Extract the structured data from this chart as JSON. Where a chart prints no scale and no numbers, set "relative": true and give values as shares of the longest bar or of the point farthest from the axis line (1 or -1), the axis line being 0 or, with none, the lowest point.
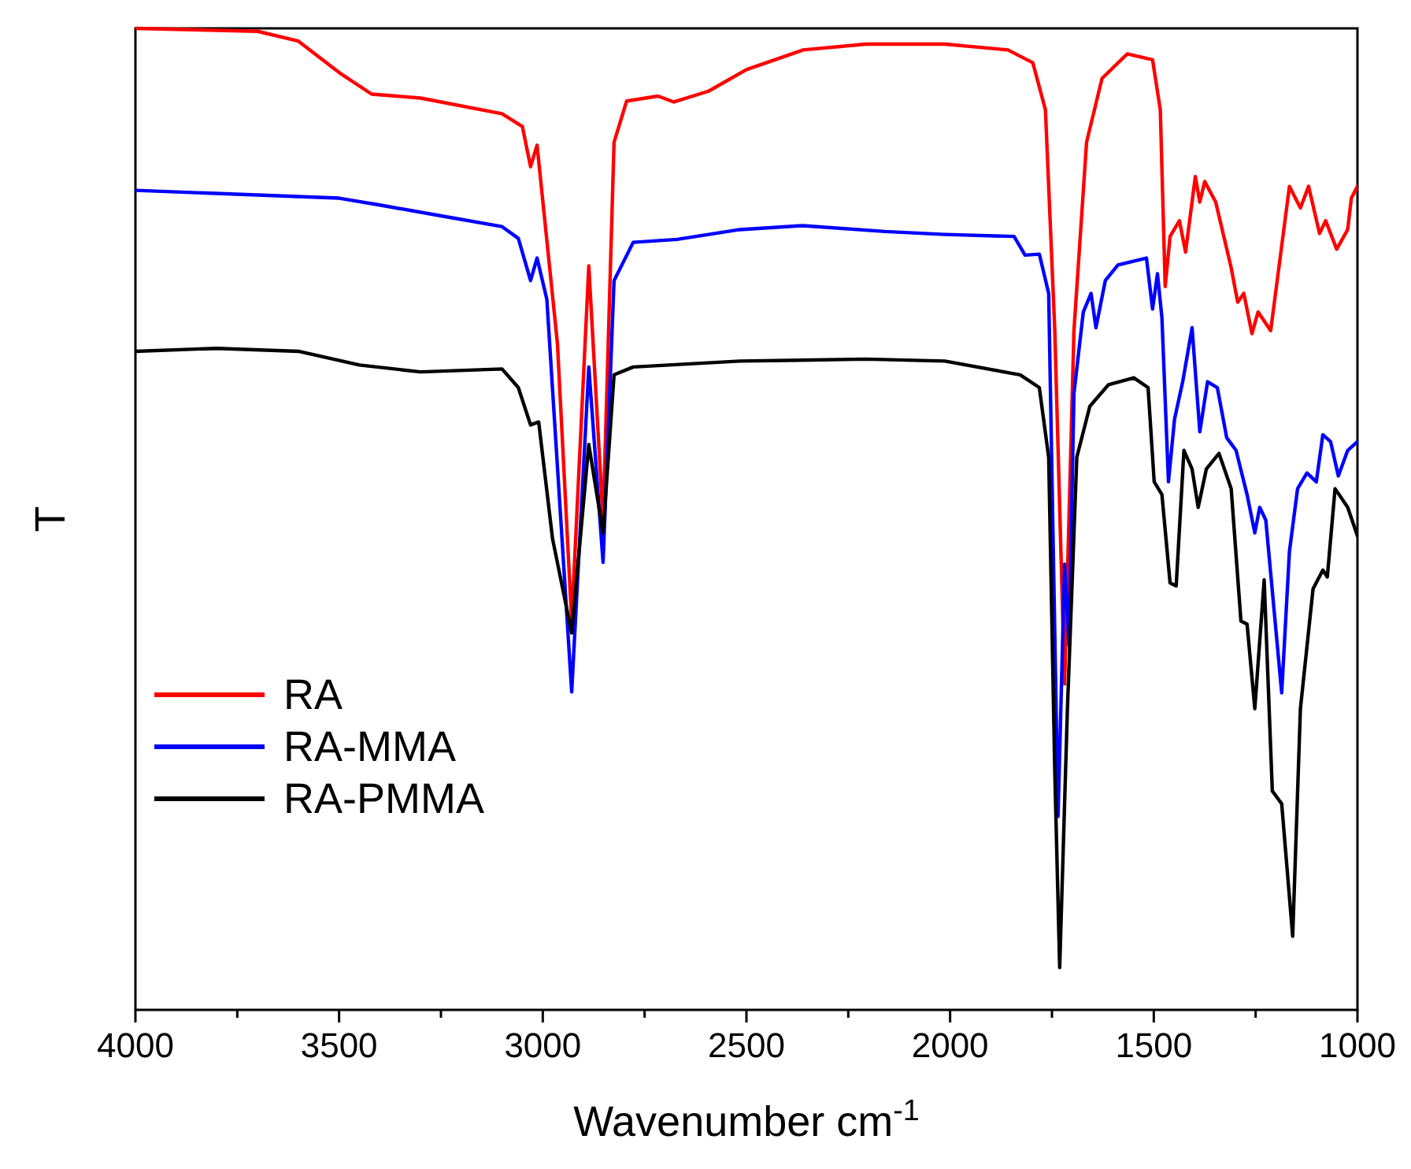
{
  "chart_data": {
    "type": "line",
    "xlabel": "Wavenumber cm$^{-1}$",
    "ylabel": "T",
    "relative": true,
    "legend": "bottom left",
    "grid": false,
    "marker": "none",
    "line_style": "solid",
    "xlim": [
      4000,
      1000
    ],
    "xticks": [
      4000,
      {
        "value": 3750,
        "label": null
      },
      3500,
      {
        "value": 3250,
        "label": null
      },
      3000,
      {
        "value": 2750,
        "label": null
      },
      2500,
      {
        "value": 2250,
        "label": null
      },
      2000,
      {
        "value": 1750,
        "label": null
      },
      1500,
      {
        "value": 1250,
        "label": null
      },
      1000
    ],
    "series": [
      {
        "name": "RA",
        "color": "#ff0000",
        "x": [
          4000,
          3700,
          3600,
          3500,
          3420,
          3300,
          3100,
          3050,
          3030,
          3014,
          2964,
          2929,
          2887,
          2852,
          2825,
          2794,
          2717,
          2678,
          2593,
          2500,
          2361,
          2206,
          2013,
          1858,
          1797,
          1766,
          1743,
          1719,
          1696,
          1665,
          1627,
          1565,
          1503,
          1484,
          1472,
          1460,
          1437,
          1422,
          1398,
          1387,
          1375,
          1348,
          1310,
          1294,
          1279,
          1259,
          1244,
          1213,
          1167,
          1140,
          1120,
          1093,
          1078,
          1051,
          1024,
          1015,
          1000
        ],
        "values": [
          1.0,
          0.997,
          0.987,
          0.955,
          0.933,
          0.929,
          0.913,
          0.9,
          0.859,
          0.881,
          0.679,
          0.396,
          0.758,
          0.498,
          0.884,
          0.926,
          0.931,
          0.925,
          0.936,
          0.958,
          0.978,
          0.984,
          0.984,
          0.978,
          0.965,
          0.917,
          0.692,
          0.332,
          0.692,
          0.884,
          0.949,
          0.974,
          0.968,
          0.917,
          0.737,
          0.788,
          0.804,
          0.772,
          0.849,
          0.823,
          0.844,
          0.823,
          0.756,
          0.721,
          0.73,
          0.689,
          0.711,
          0.692,
          0.839,
          0.817,
          0.839,
          0.791,
          0.804,
          0.775,
          0.795,
          0.827,
          0.839
        ]
      },
      {
        "name": "RA-MMA",
        "color": "#0000ff",
        "x": [
          4000,
          3500,
          3400,
          3250,
          3100,
          3060,
          3030,
          3014,
          2990,
          2929,
          2887,
          2852,
          2825,
          2778,
          2670,
          2516,
          2361,
          2160,
          2013,
          1843,
          1816,
          1781,
          1758,
          1735,
          1719,
          1708,
          1696,
          1673,
          1654,
          1642,
          1619,
          1588,
          1518,
          1503,
          1491,
          1480,
          1464,
          1449,
          1429,
          1406,
          1387,
          1368,
          1344,
          1321,
          1298,
          1271,
          1252,
          1240,
          1225,
          1186,
          1167,
          1147,
          1124,
          1101,
          1085,
          1066,
          1047,
          1024,
          1000
        ],
        "values": [
          0.835,
          0.827,
          0.82,
          0.809,
          0.798,
          0.786,
          0.743,
          0.766,
          0.724,
          0.324,
          0.655,
          0.456,
          0.743,
          0.782,
          0.785,
          0.795,
          0.799,
          0.793,
          0.79,
          0.788,
          0.769,
          0.77,
          0.73,
          0.197,
          0.454,
          0.371,
          0.628,
          0.711,
          0.73,
          0.695,
          0.743,
          0.759,
          0.766,
          0.714,
          0.75,
          0.705,
          0.538,
          0.602,
          0.64,
          0.695,
          0.589,
          0.64,
          0.634,
          0.583,
          0.57,
          0.525,
          0.486,
          0.512,
          0.499,
          0.323,
          0.467,
          0.531,
          0.547,
          0.538,
          0.586,
          0.579,
          0.544,
          0.57,
          0.579
        ]
      },
      {
        "name": "RA-PMMA",
        "color": "#000000",
        "x": [
          4000,
          3800,
          3600,
          3450,
          3300,
          3100,
          3060,
          3030,
          3010,
          2976,
          2929,
          2887,
          2852,
          2825,
          2778,
          2516,
          2206,
          2013,
          1828,
          1781,
          1758,
          1743,
          1731,
          1712,
          1689,
          1657,
          1611,
          1549,
          1514,
          1499,
          1480,
          1460,
          1445,
          1426,
          1406,
          1391,
          1371,
          1340,
          1310,
          1286,
          1271,
          1252,
          1229,
          1209,
          1186,
          1159,
          1140,
          1109,
          1085,
          1074,
          1055,
          1024,
          1000
        ],
        "values": [
          0.671,
          0.674,
          0.671,
          0.657,
          0.65,
          0.653,
          0.634,
          0.596,
          0.599,
          0.48,
          0.384,
          0.576,
          0.486,
          0.647,
          0.655,
          0.661,
          0.663,
          0.661,
          0.647,
          0.634,
          0.563,
          0.242,
          0.043,
          0.307,
          0.563,
          0.615,
          0.637,
          0.644,
          0.634,
          0.538,
          0.525,
          0.435,
          0.432,
          0.57,
          0.551,
          0.512,
          0.551,
          0.567,
          0.531,
          0.396,
          0.393,
          0.307,
          0.438,
          0.223,
          0.21,
          0.075,
          0.307,
          0.429,
          0.448,
          0.441,
          0.531,
          0.512,
          0.483
        ]
      }
    ]
  }
}
